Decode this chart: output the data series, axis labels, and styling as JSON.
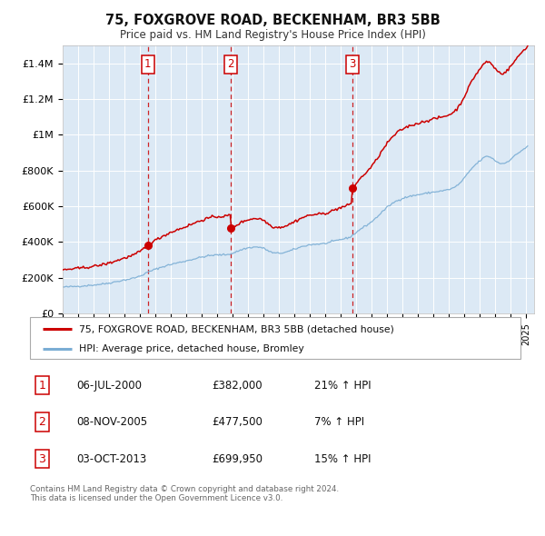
{
  "title1": "75, FOXGROVE ROAD, BECKENHAM, BR3 5BB",
  "title2": "Price paid vs. HM Land Registry's House Price Index (HPI)",
  "sale_decimals": [
    2000.51,
    2005.85,
    2013.75
  ],
  "sale_prices": [
    382000,
    477500,
    699950
  ],
  "sale_labels": [
    "1",
    "2",
    "3"
  ],
  "sale_pct": [
    "21% ↑ HPI",
    "7% ↑ HPI",
    "15% ↑ HPI"
  ],
  "sale_date_labels": [
    "06-JUL-2000",
    "08-NOV-2005",
    "03-OCT-2013"
  ],
  "sale_price_labels": [
    "£382,000",
    "£477,500",
    "£699,950"
  ],
  "red_color": "#cc0000",
  "blue_color": "#7aadd4",
  "bg_color": "#dce9f5",
  "grid_color": "#ffffff",
  "legend_label_red": "75, FOXGROVE ROAD, BECKENHAM, BR3 5BB (detached house)",
  "legend_label_blue": "HPI: Average price, detached house, Bromley",
  "footer": "Contains HM Land Registry data © Crown copyright and database right 2024.\nThis data is licensed under the Open Government Licence v3.0.",
  "ylim": [
    0,
    1500000
  ],
  "yticks": [
    0,
    200000,
    400000,
    600000,
    800000,
    1000000,
    1200000,
    1400000
  ],
  "ytick_labels": [
    "£0",
    "£200K",
    "£400K",
    "£600K",
    "£800K",
    "£1M",
    "£1.2M",
    "£1.4M"
  ],
  "xstart_year": 1995,
  "xend_year": 2025,
  "hpi_key_times": [
    1995.0,
    1996.0,
    1997.0,
    1998.0,
    1999.0,
    2000.0,
    2000.51,
    2001.0,
    2002.0,
    2003.0,
    2004.0,
    2005.0,
    2005.85,
    2006.5,
    2007.5,
    2008.0,
    2008.5,
    2009.0,
    2009.5,
    2010.0,
    2010.5,
    2011.0,
    2012.0,
    2013.0,
    2013.75,
    2014.0,
    2015.0,
    2016.0,
    2017.0,
    2018.0,
    2019.0,
    2020.0,
    2020.5,
    2021.0,
    2021.5,
    2022.0,
    2022.5,
    2023.0,
    2023.5,
    2024.0,
    2024.5,
    2025.0
  ],
  "hpi_key_values": [
    148000,
    153000,
    160000,
    171000,
    188000,
    210000,
    231000,
    248000,
    275000,
    295000,
    316000,
    328000,
    334000,
    355000,
    372000,
    365000,
    343000,
    338000,
    345000,
    360000,
    375000,
    385000,
    393000,
    415000,
    437000,
    455000,
    515000,
    595000,
    645000,
    665000,
    680000,
    695000,
    715000,
    760000,
    815000,
    855000,
    880000,
    855000,
    840000,
    865000,
    900000,
    930000
  ],
  "noise_seed": 42,
  "noise_scale": 2500
}
